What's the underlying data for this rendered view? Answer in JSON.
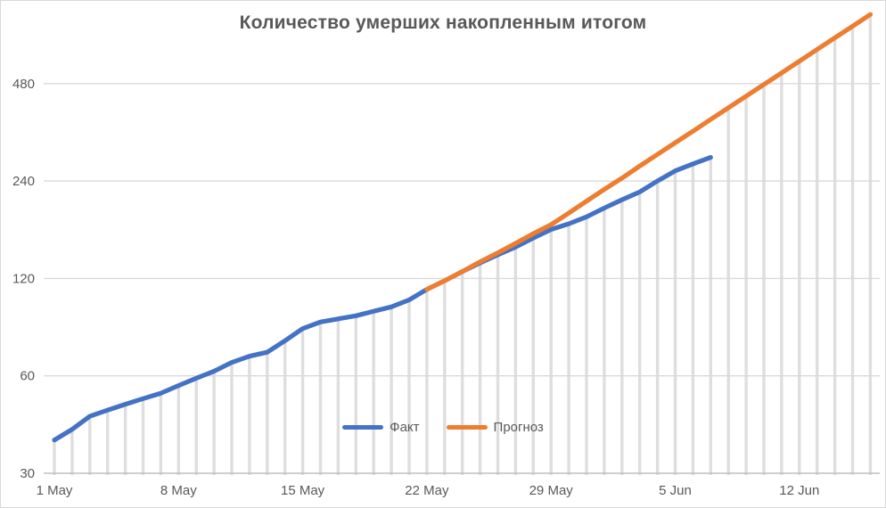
{
  "chart_data": {
    "type": "line",
    "title": "Количество умерших накопленным итогом",
    "y_axis": {
      "scale": "log2",
      "min": 30,
      "ticks": [
        30,
        60,
        120,
        240,
        480
      ]
    },
    "x_axis": {
      "tick_labels": [
        "1 May",
        "8 May",
        "15 May",
        "22 May",
        "29 May",
        "5 Jun",
        "12 Jun"
      ],
      "tick_day_index": [
        0,
        7,
        14,
        21,
        28,
        35,
        42
      ],
      "days_total": 47,
      "drop_lines": true
    },
    "series": [
      {
        "name": "Факт",
        "color": "#4472C4",
        "start_day": 0,
        "values": [
          38,
          41,
          45,
          47,
          49,
          51,
          53,
          56,
          59,
          62,
          66,
          69,
          71,
          77,
          84,
          88,
          90,
          92,
          95,
          98,
          103,
          111,
          118,
          126,
          134,
          142,
          150,
          160,
          170,
          177,
          186,
          198,
          210,
          222,
          240,
          258,
          271,
          284
        ]
      },
      {
        "name": "Прогноз",
        "color": "#ED7D31",
        "start_day": 21,
        "values": [
          111,
          118,
          126,
          135,
          144,
          154,
          165,
          176,
          191,
          208,
          226,
          245,
          267,
          290,
          315,
          342,
          372,
          404,
          439,
          477,
          518,
          563,
          612,
          665,
          722,
          785
        ]
      }
    ],
    "legend": {
      "position": "bottom-center",
      "entries": [
        "Факт",
        "Прогноз"
      ]
    },
    "text_color": "#595959",
    "gridline_color": "#d9d9d9",
    "drop_line_color": "#dedede",
    "axis_line_color": "#bfbfbf"
  }
}
